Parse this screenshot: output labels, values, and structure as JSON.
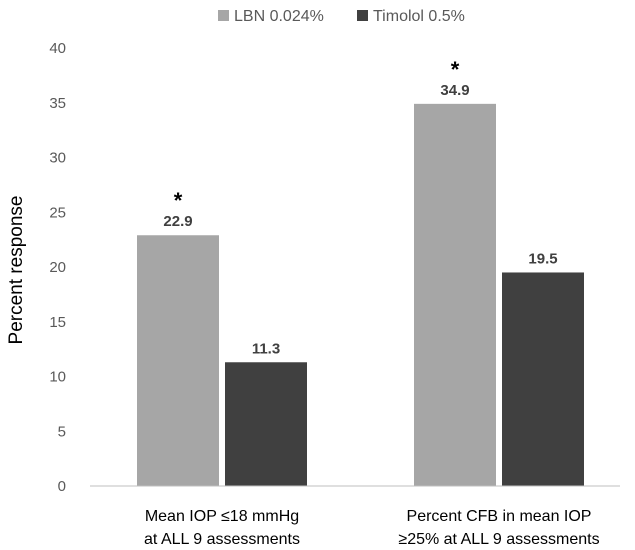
{
  "chart_data": {
    "type": "bar",
    "title": "",
    "xlabel": "",
    "ylabel": "Percent response",
    "ylim": [
      0,
      40
    ],
    "yticks": [
      0,
      5,
      10,
      15,
      20,
      25,
      30,
      35,
      40
    ],
    "grid": false,
    "legend_position": "top-center",
    "categories": [
      [
        "Mean IOP ≤18 mmHg",
        "at ALL 9 assessments"
      ],
      [
        "Percent CFB in mean IOP",
        "≥25% at ALL 9 assessments"
      ]
    ],
    "series": [
      {
        "name": "LBN 0.024%",
        "color": "#a6a6a6",
        "values": [
          22.9,
          34.9
        ],
        "labels": [
          "22.9",
          "34.9"
        ]
      },
      {
        "name": "Timolol 0.5%",
        "color": "#404040",
        "values": [
          11.3,
          19.5
        ],
        "labels": [
          "11.3",
          "19.5"
        ]
      }
    ],
    "annotations": [
      {
        "text": "*",
        "series": 0,
        "category": 0
      },
      {
        "text": "*",
        "series": 0,
        "category": 1
      }
    ]
  }
}
